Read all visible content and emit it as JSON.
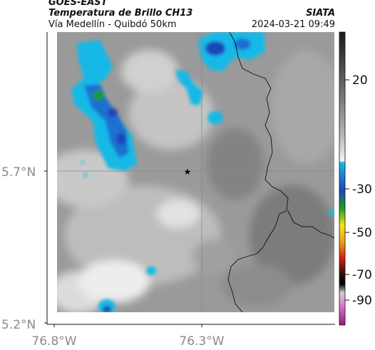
{
  "header": {
    "satellite": "GOES-EAST",
    "product": "Temperatura de Brillo CH13",
    "region": "Vía Medellín - Quibdó 50km",
    "agency": "SIATA",
    "datetime": "2024-03-21 09:49"
  },
  "axes": {
    "lat_ticks": [
      "5.7°N",
      "5.2°N"
    ],
    "lon_ticks": [
      "76.8°W",
      "76.3°W"
    ]
  },
  "colorbar": {
    "tick_labels": [
      "20",
      "-30",
      "-50",
      "-70",
      "-90"
    ],
    "palette": {
      "warm_top": "#1a1a1a",
      "warm_mid": "#9a9a9a",
      "warm_low": "#f2f2f2",
      "cyan": "#19b9e6",
      "blue": "#1f44b8",
      "green": "#1d9b2a",
      "yellow": "#f4e21a",
      "red": "#d42010",
      "black": "#000000",
      "magenta": "#c0208c"
    }
  },
  "map": {
    "marker": "star-marker",
    "gridline_color": "#888888",
    "border_color": "#111111"
  }
}
